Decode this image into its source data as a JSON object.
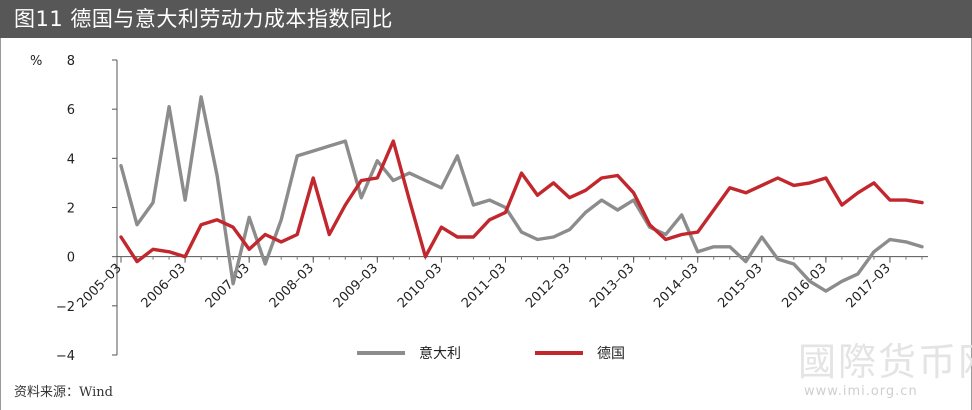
{
  "header": {
    "title": "图11   德国与意大利劳动力成本指数同比"
  },
  "source": "资料来源：Wind",
  "watermark": {
    "text": "國際货币网",
    "url": "www.imi.org.cn"
  },
  "colors": {
    "italy": "#8c8c8c",
    "germany": "#c1272d",
    "title_bg": "#575757"
  },
  "chart_data": {
    "type": "line",
    "ylabel": "%",
    "ylim": [
      -4,
      8
    ],
    "yticks": [
      8,
      6,
      4,
      2,
      0,
      -2,
      -4
    ],
    "ytick_labels": [
      "8",
      "6",
      "4",
      "2",
      "0",
      "−2",
      "−4"
    ],
    "xtick_labels": [
      "2005–03",
      "2006–03",
      "2007–03",
      "2008–03",
      "2009–03",
      "2010–03",
      "2011–03",
      "2012–03",
      "2013–03",
      "2014–03",
      "2015–03",
      "2016–03",
      "2017–03"
    ],
    "grid": false,
    "legend_position": "bottom-center",
    "series": [
      {
        "name": "意大利",
        "color": "#8c8c8c",
        "values": [
          3.7,
          1.3,
          2.2,
          6.1,
          2.3,
          6.5,
          3.3,
          -1.1,
          1.6,
          -0.3,
          1.5,
          4.1,
          4.3,
          4.5,
          4.7,
          2.4,
          3.9,
          3.1,
          3.4,
          3.1,
          2.8,
          4.1,
          2.1,
          2.3,
          2.0,
          1.0,
          0.7,
          0.8,
          1.1,
          1.8,
          2.3,
          1.9,
          2.3,
          1.2,
          0.9,
          1.7,
          0.2,
          0.4,
          0.4,
          -0.2,
          0.8,
          -0.1,
          -0.3,
          -1.0,
          -1.4,
          -1.0,
          -0.7,
          0.2,
          0.7,
          0.6,
          0.4
        ]
      },
      {
        "name": "德国",
        "color": "#c1272d",
        "values": [
          0.8,
          -0.2,
          0.3,
          0.2,
          0.0,
          1.3,
          1.5,
          1.2,
          0.3,
          0.9,
          0.6,
          0.9,
          3.2,
          0.9,
          2.1,
          3.1,
          3.2,
          4.7,
          2.3,
          0.0,
          1.2,
          0.8,
          0.8,
          1.5,
          1.8,
          3.4,
          2.5,
          3.0,
          2.4,
          2.7,
          3.2,
          3.3,
          2.6,
          1.3,
          0.7,
          0.9,
          1.0,
          1.9,
          2.8,
          2.6,
          2.9,
          3.2,
          2.9,
          3.0,
          3.2,
          2.1,
          2.6,
          3.0,
          2.3,
          2.3,
          2.2
        ]
      }
    ]
  }
}
